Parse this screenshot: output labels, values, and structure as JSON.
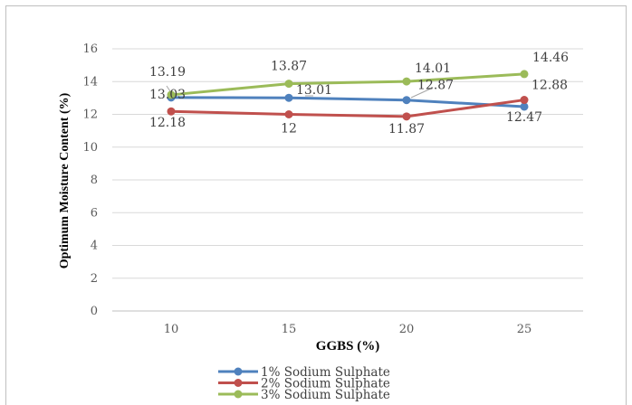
{
  "chart_data": {
    "type": "line",
    "title": "",
    "xlabel": "GGBS (%)",
    "ylabel": "Optimum Moisture Content (%)",
    "x": [
      10,
      15,
      20,
      25
    ],
    "ylim": [
      0,
      16
    ],
    "yticks": [
      0,
      2,
      4,
      6,
      8,
      10,
      12,
      14,
      16
    ],
    "grid": true,
    "legend": "bottom",
    "series": [
      {
        "name": "1% Sodium Sulphate",
        "color": "#4f81bd",
        "values": [
          13.03,
          13.01,
          12.87,
          12.47
        ],
        "labels": [
          "13.03",
          "13.01",
          "12.87",
          "12.47"
        ]
      },
      {
        "name": "2% Sodium Sulphate",
        "color": "#c0504d",
        "values": [
          12.18,
          12,
          11.87,
          12.88
        ],
        "labels": [
          "12.18",
          "12",
          "11.87",
          "12.88"
        ]
      },
      {
        "name": "3% Sodium Sulphate",
        "color": "#9bbb59",
        "values": [
          13.19,
          13.87,
          14.01,
          14.46
        ],
        "labels": [
          "13.19",
          "13.87",
          "14.01",
          "14.46"
        ]
      }
    ]
  }
}
